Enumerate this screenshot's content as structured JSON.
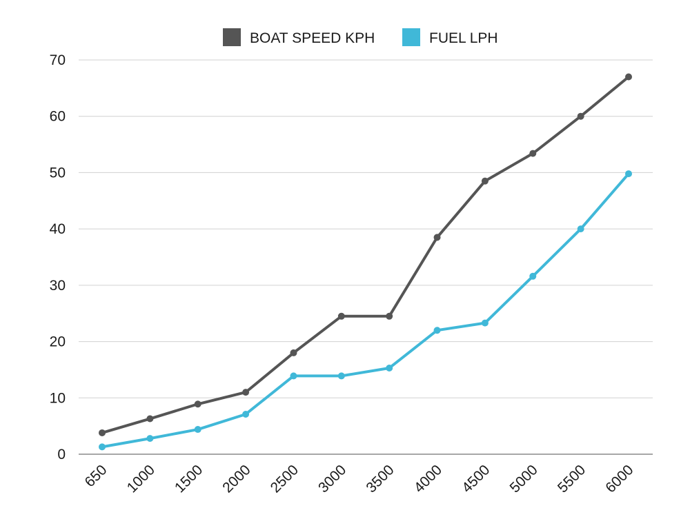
{
  "chart_data": {
    "type": "line",
    "categories": [
      "650",
      "1000",
      "1500",
      "2000",
      "2500",
      "3000",
      "3500",
      "4000",
      "4500",
      "5000",
      "5500",
      "6000"
    ],
    "series": [
      {
        "name": "BOAT SPEED KPH",
        "color": "#555555",
        "values": [
          3.8,
          6.3,
          8.9,
          11.0,
          18.0,
          24.5,
          24.5,
          38.5,
          48.5,
          53.4,
          60.0,
          67.0
        ]
      },
      {
        "name": "FUEL LPH",
        "color": "#40b8d8",
        "values": [
          1.3,
          2.8,
          4.4,
          7.1,
          13.9,
          13.9,
          15.3,
          22.0,
          23.3,
          31.6,
          40.0,
          49.8
        ]
      }
    ],
    "ylim": [
      0,
      70
    ],
    "yticks": [
      0,
      10,
      20,
      30,
      40,
      50,
      60,
      70
    ],
    "grid": true,
    "legend_position": "top-center",
    "title": "",
    "xlabel": "",
    "ylabel": ""
  }
}
